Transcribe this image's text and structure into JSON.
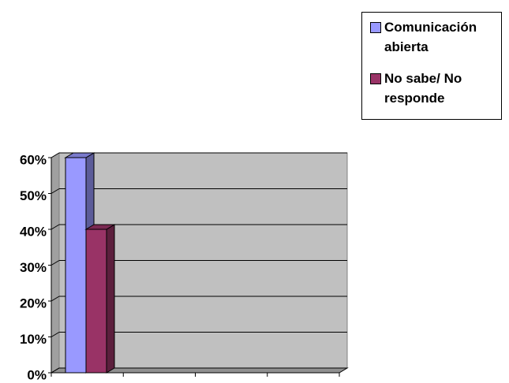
{
  "chart_data": {
    "type": "bar3d",
    "categories": [
      null,
      null,
      null,
      null
    ],
    "series": [
      {
        "name": "Comunicación abierta",
        "color": "#9999ff",
        "values": [
          60,
          null,
          null,
          null
        ]
      },
      {
        "name": "No sabe/ No responde",
        "color": "#993366",
        "values": [
          40,
          null,
          null,
          null
        ]
      }
    ],
    "ylim": [
      0,
      60
    ],
    "yticks": [
      {
        "value": 0,
        "label": "0%"
      },
      {
        "value": 10,
        "label": "10%"
      },
      {
        "value": 20,
        "label": "20%"
      },
      {
        "value": 30,
        "label": "30%"
      },
      {
        "value": 40,
        "label": "40%"
      },
      {
        "value": 50,
        "label": "50%"
      },
      {
        "value": 60,
        "label": "60%"
      }
    ],
    "grid": true,
    "legend": "top-right"
  }
}
